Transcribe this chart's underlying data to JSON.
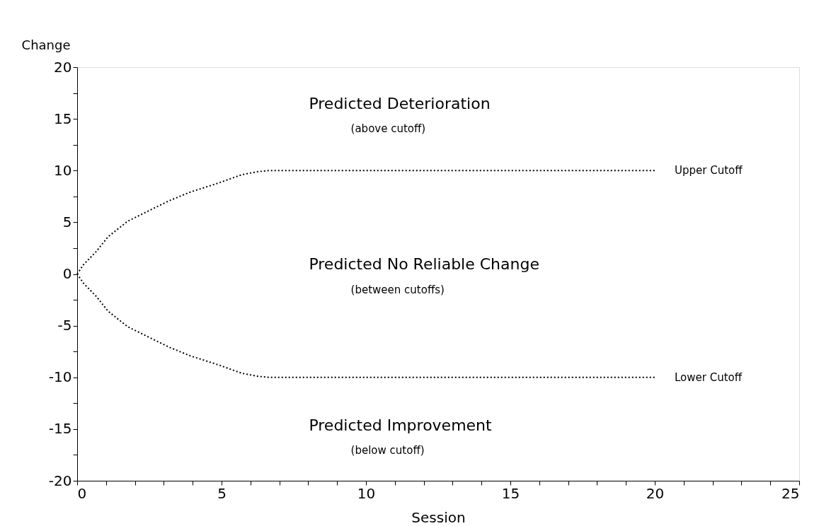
{
  "chart_data": {
    "type": "line",
    "xlabel": "Session",
    "ylabel": "Change",
    "series": [
      {
        "name": "Upper Cutoff",
        "color": "#000000",
        "x": [
          0,
          0.22,
          0.67,
          1.07,
          1.75,
          2.47,
          3.2,
          3.9,
          4.9,
          5.7,
          6.25,
          6.65,
          20
        ],
        "values": [
          0,
          0.9,
          2.2,
          3.6,
          5.1,
          6.1,
          7.1,
          7.9,
          8.8,
          9.6,
          9.9,
          10,
          10
        ]
      },
      {
        "name": "Lower Cutoff",
        "color": "#000000",
        "x": [
          0,
          0.22,
          0.67,
          1.07,
          1.75,
          2.47,
          3.2,
          3.9,
          4.9,
          5.7,
          6.25,
          6.65,
          20
        ],
        "values": [
          0,
          -0.9,
          -2.2,
          -3.6,
          -5.1,
          -6.1,
          -7.1,
          -7.9,
          -8.8,
          -9.6,
          -9.9,
          -10,
          -10
        ]
      }
    ],
    "line_style": "dotted",
    "marker": "none",
    "grid": false,
    "legend": false,
    "xlim": [
      0,
      25
    ],
    "ylim": [
      -20,
      20
    ],
    "xticks": [
      0,
      {
        "value": 1,
        "label": null
      },
      {
        "value": 2,
        "label": null
      },
      {
        "value": 3,
        "label": null
      },
      {
        "value": 4,
        "label": null
      },
      5,
      {
        "value": 6,
        "label": null
      },
      {
        "value": 7,
        "label": null
      },
      {
        "value": 8,
        "label": null
      },
      {
        "value": 9,
        "label": null
      },
      10,
      {
        "value": 11,
        "label": null
      },
      {
        "value": 12,
        "label": null
      },
      {
        "value": 13,
        "label": null
      },
      {
        "value": 14,
        "label": null
      },
      15,
      {
        "value": 16,
        "label": null
      },
      {
        "value": 17,
        "label": null
      },
      {
        "value": 18,
        "label": null
      },
      {
        "value": 19,
        "label": null
      },
      20,
      {
        "value": 21,
        "label": null
      },
      {
        "value": 22,
        "label": null
      },
      {
        "value": 23,
        "label": null
      },
      {
        "value": 24,
        "label": null
      },
      25
    ],
    "yticks": [
      -20,
      {
        "value": -17.5,
        "label": null
      },
      -15,
      {
        "value": -12.5,
        "label": null
      },
      -10,
      {
        "value": -7.5,
        "label": null
      },
      -5,
      {
        "value": -2.5,
        "label": null
      },
      0,
      {
        "value": 2.5,
        "label": null
      },
      5,
      {
        "value": 7.5,
        "label": null
      },
      10,
      {
        "value": 12.5,
        "label": null
      },
      15,
      {
        "value": 17.5,
        "label": null
      },
      20
    ],
    "annotations": [
      "Predicted Deterioration",
      "(above cutoff)",
      "Predicted No Reliable Change",
      "(between cutoffs)",
      "Predicted Improvement",
      "(below cutoff)"
    ]
  }
}
